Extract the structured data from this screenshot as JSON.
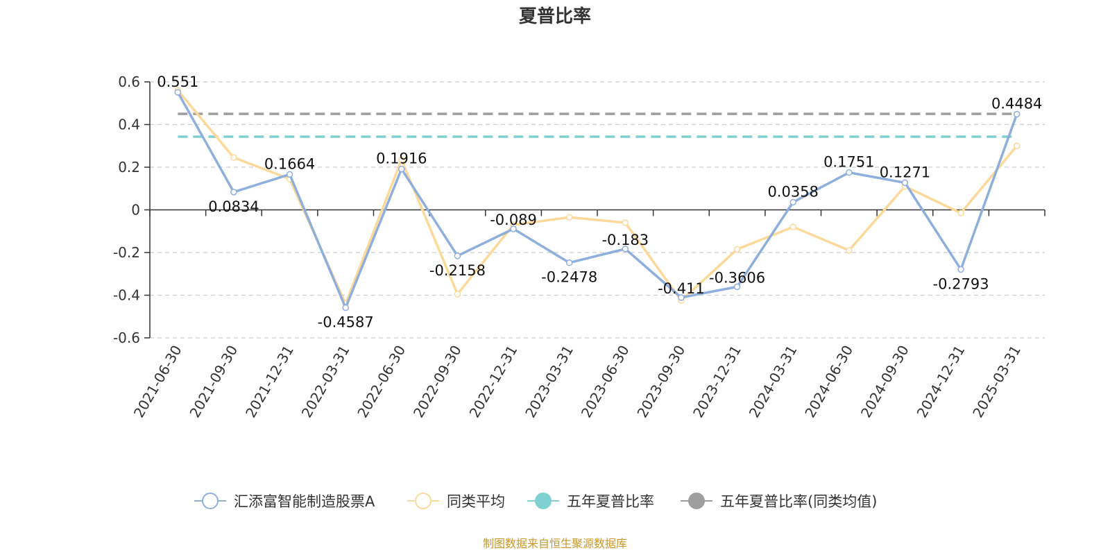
{
  "chart_data": {
    "type": "line",
    "title": "夏普比率",
    "source": "制图数据来自恒生聚源数据库",
    "categories": [
      "2021-06-30",
      "2021-09-30",
      "2021-12-31",
      "2022-03-31",
      "2022-06-30",
      "2022-09-30",
      "2022-12-31",
      "2023-03-31",
      "2023-06-30",
      "2023-09-30",
      "2023-12-31",
      "2024-03-31",
      "2024-06-30",
      "2024-09-30",
      "2024-12-31",
      "2025-03-31"
    ],
    "ylim": [
      -0.6,
      0.6
    ],
    "yticks": [
      "0.6",
      "0.4",
      "0.2",
      "0",
      "-0.2",
      "-0.4",
      "-0.6"
    ],
    "grid": true,
    "legend_position": "bottom",
    "series": [
      {
        "name": "汇添富智能制造股票A",
        "color": "#8eaedc",
        "values": [
          0.551,
          0.0834,
          0.1664,
          -0.4587,
          0.1916,
          -0.2158,
          -0.089,
          -0.2478,
          -0.183,
          -0.411,
          -0.3606,
          0.0358,
          0.1751,
          0.1271,
          -0.2793,
          0.4484
        ],
        "labels": [
          "0.551",
          "0.0834",
          "0.1664",
          "-0.4587",
          "0.1916",
          "-0.2158",
          "-0.089",
          "-0.2478",
          "-0.183",
          "-0.411",
          "-0.3606",
          "0.0358",
          "0.1751",
          "0.1271",
          "-0.2793",
          "0.4484"
        ]
      },
      {
        "name": "同类平均",
        "color": "#fcd899",
        "values": [
          0.56,
          0.245,
          0.145,
          -0.44,
          0.235,
          -0.395,
          -0.07,
          -0.035,
          -0.06,
          -0.425,
          -0.185,
          -0.08,
          -0.19,
          0.11,
          -0.015,
          0.3
        ]
      },
      {
        "name": "五年夏普比率",
        "color": "#7fd1d1",
        "constant": 0.343
      },
      {
        "name": "五年夏普比率(同类均值)",
        "color": "#9e9e9e",
        "constant": 0.45
      }
    ]
  }
}
